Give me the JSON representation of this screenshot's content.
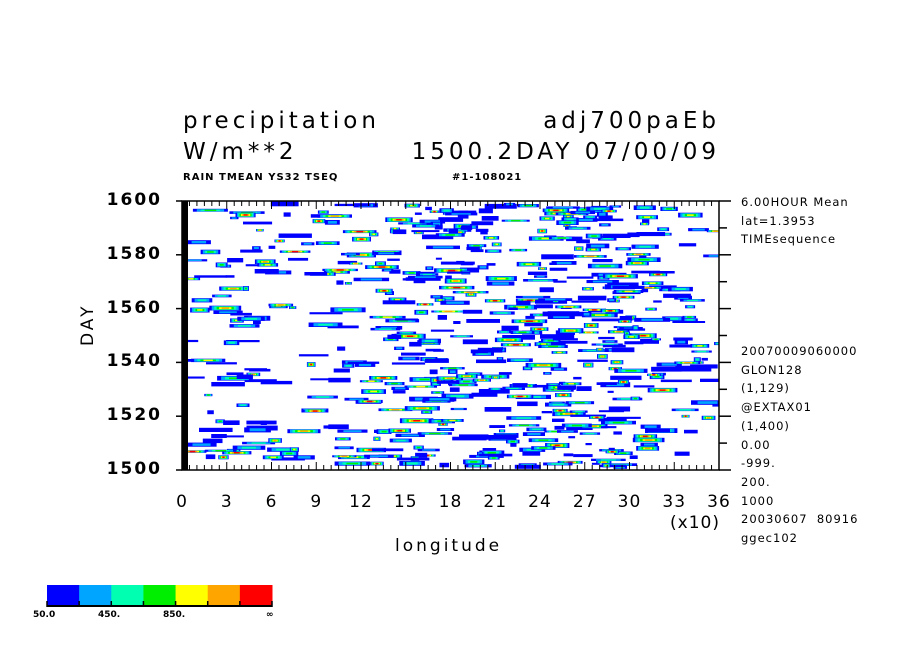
{
  "header": {
    "title_left": "precipitation",
    "title_right": "adj700paEb",
    "units": "W/m**2",
    "time_label": "1500.2DAY 07/00/09",
    "subtitle_left": "RAIN TMEAN YS32 TSEQ",
    "subtitle_right": "#1-108021"
  },
  "side_info": {
    "top": [
      "6.00HOUR Mean",
      "lat=1.3953",
      "TIMEsequence"
    ],
    "bottom": [
      "20070009060000",
      "GLON128",
      "(1,129)",
      "@EXTAX01",
      "(1,400)",
      "0.00",
      "-999.",
      "200.",
      "1000",
      "20030607  80916",
      "ggec102"
    ]
  },
  "chart_data": {
    "type": "heatmap",
    "title": "precipitation",
    "xlabel": "longitude",
    "ylabel": "DAY",
    "x_multiplier_label": "(x10)",
    "x_ticks": [
      "0",
      "3",
      "6",
      "9",
      "12",
      "15",
      "18",
      "21",
      "24",
      "27",
      "30",
      "33",
      "36"
    ],
    "y_ticks": [
      "1500",
      "1520",
      "1540",
      "1560",
      "1580",
      "1600"
    ],
    "xlim": [
      0,
      360
    ],
    "ylim": [
      1500,
      1600
    ],
    "grid": false,
    "legend_position": "bottom-left",
    "colorbar": {
      "levels": [
        50,
        250,
        450,
        650,
        850,
        1050
      ],
      "labels": [
        "50.0",
        "450.",
        "850.",
        "∞"
      ],
      "colors": [
        "#0000ff",
        "#00a5ff",
        "#00ffb0",
        "#00ee00",
        "#ffff00",
        "#ffa500",
        "#ff0000"
      ]
    },
    "description_of_field": "Hovmöller time-longitude field of precipitation shown as filled contour streaks"
  }
}
